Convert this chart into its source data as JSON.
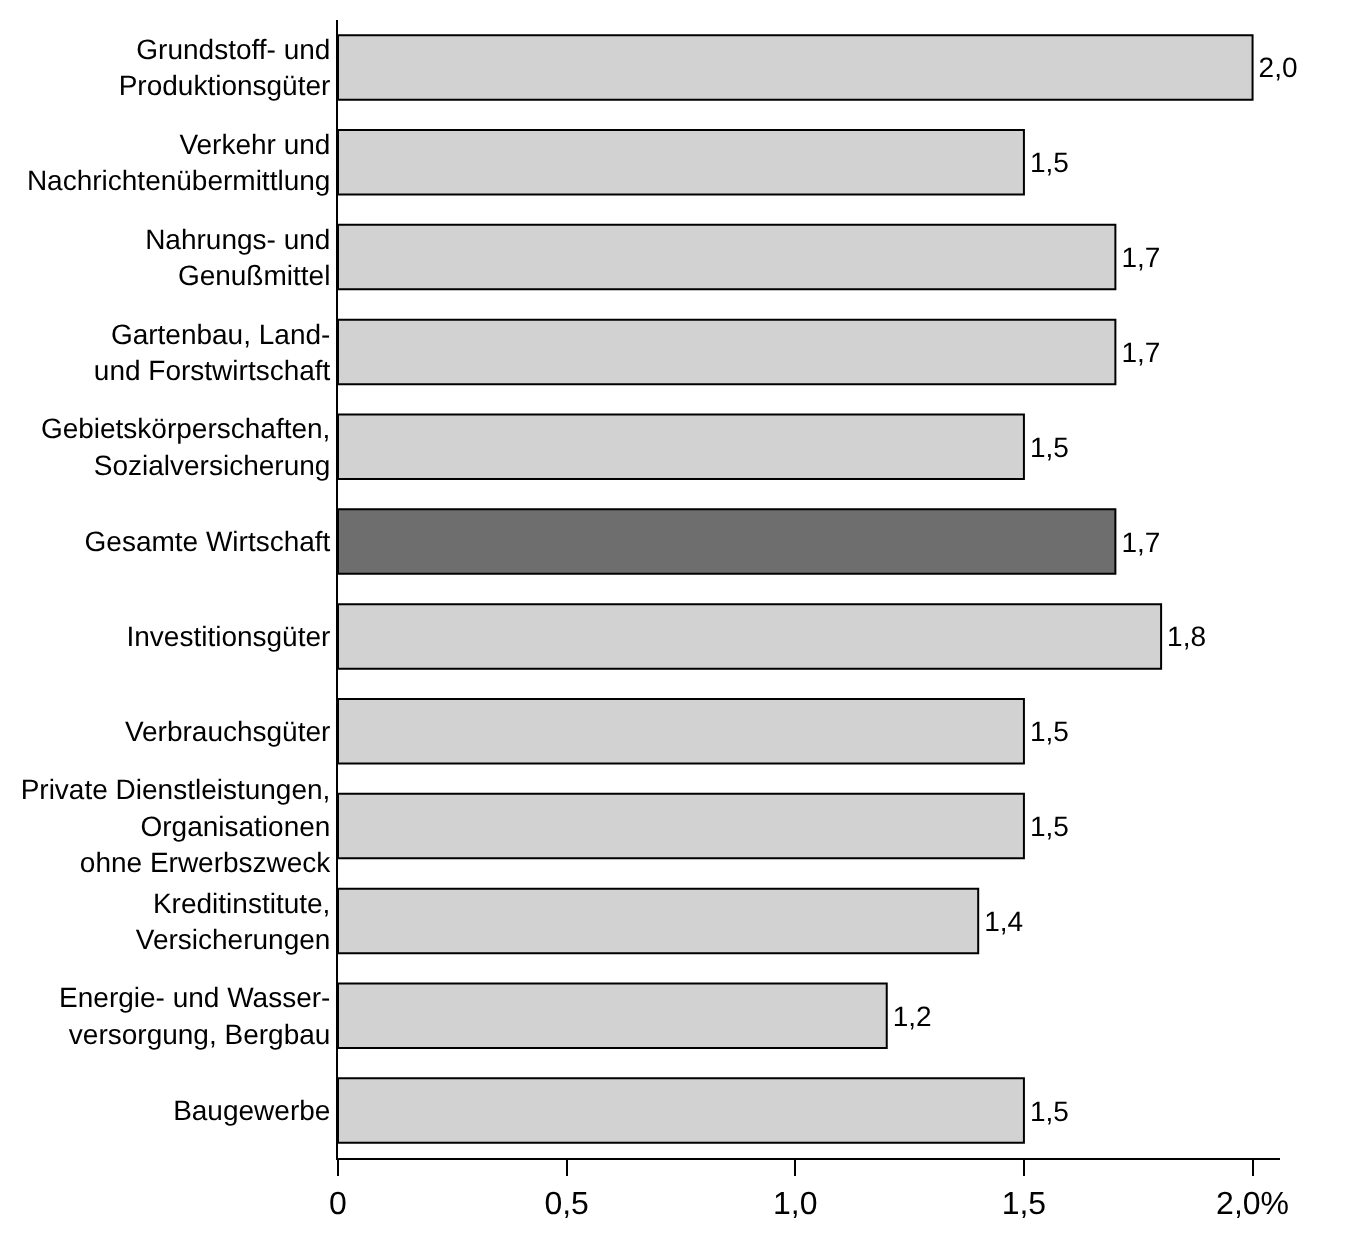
{
  "chart_data": {
    "type": "bar",
    "orientation": "horizontal",
    "categories": [
      "Grundstoff- und\nProduktionsgüter",
      "Verkehr und\nNachrichtenübermittlung",
      "Nahrungs- und\nGenußmittel",
      "Gartenbau, Land-\nund Forstwirtschaft",
      "Gebietskörperschaften,\nSozialversicherung",
      "Gesamte Wirtschaft",
      "Investitionsgüter",
      "Verbrauchsgüter",
      "Private Dienstleistungen,\nOrganisationen\nohne Erwerbszweck",
      "Kreditinstitute,\nVersicherungen",
      "Energie- und Wasser-\nversorgung, Bergbau",
      "Baugewerbe"
    ],
    "values": [
      2.0,
      1.5,
      1.7,
      1.7,
      1.5,
      1.7,
      1.8,
      1.5,
      1.5,
      1.4,
      1.2,
      1.5
    ],
    "value_labels": [
      "2,0",
      "1,5",
      "1,7",
      "1,7",
      "1,5",
      "1,7",
      "1,8",
      "1,5",
      "1,5",
      "1,4",
      "1,2",
      "1,5"
    ],
    "colors": [
      "#d2d2d2",
      "#d2d2d2",
      "#d2d2d2",
      "#d2d2d2",
      "#d2d2d2",
      "#6e6e6e",
      "#d2d2d2",
      "#d2d2d2",
      "#d2d2d2",
      "#d2d2d2",
      "#d2d2d2",
      "#d2d2d2"
    ],
    "xlim": [
      0,
      2.06
    ],
    "xticks": [
      0,
      {
        "value": 0.5,
        "label": "0,5"
      },
      {
        "value": 1.0,
        "label": "1,0"
      },
      {
        "value": 1.5,
        "label": "1,5"
      },
      {
        "value": 2.0,
        "label": "2,0%"
      }
    ],
    "grid": false,
    "legend": false
  }
}
